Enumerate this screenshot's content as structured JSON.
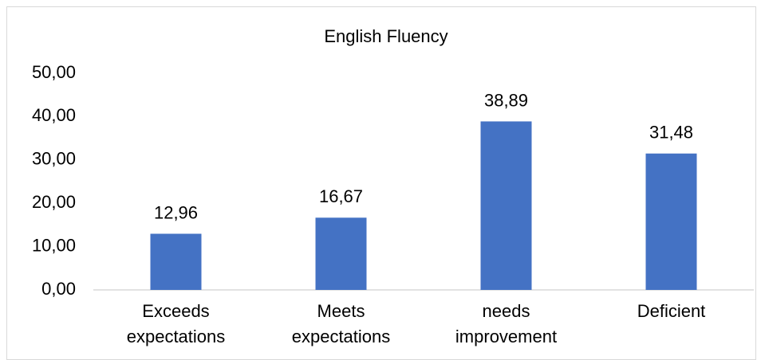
{
  "chart_data": {
    "type": "bar",
    "title": "English Fluency",
    "categories": [
      "Exceeds expectations",
      "Meets expectations",
      "needs improvement",
      "Deficient"
    ],
    "values": [
      12.96,
      16.67,
      38.89,
      31.48
    ],
    "value_labels": [
      "12,96",
      "16,67",
      "38,89",
      "31,48"
    ],
    "color": "#4472c4",
    "ylim": [
      0,
      50
    ],
    "yticks": [
      {
        "value": 0,
        "label": "0,00"
      },
      {
        "value": 10,
        "label": "10,00"
      },
      {
        "value": 20,
        "label": "20,00"
      },
      {
        "value": 30,
        "label": "30,00"
      },
      {
        "value": 40,
        "label": "40,00"
      },
      {
        "value": 50,
        "label": "50,00"
      }
    ],
    "grid": false
  }
}
